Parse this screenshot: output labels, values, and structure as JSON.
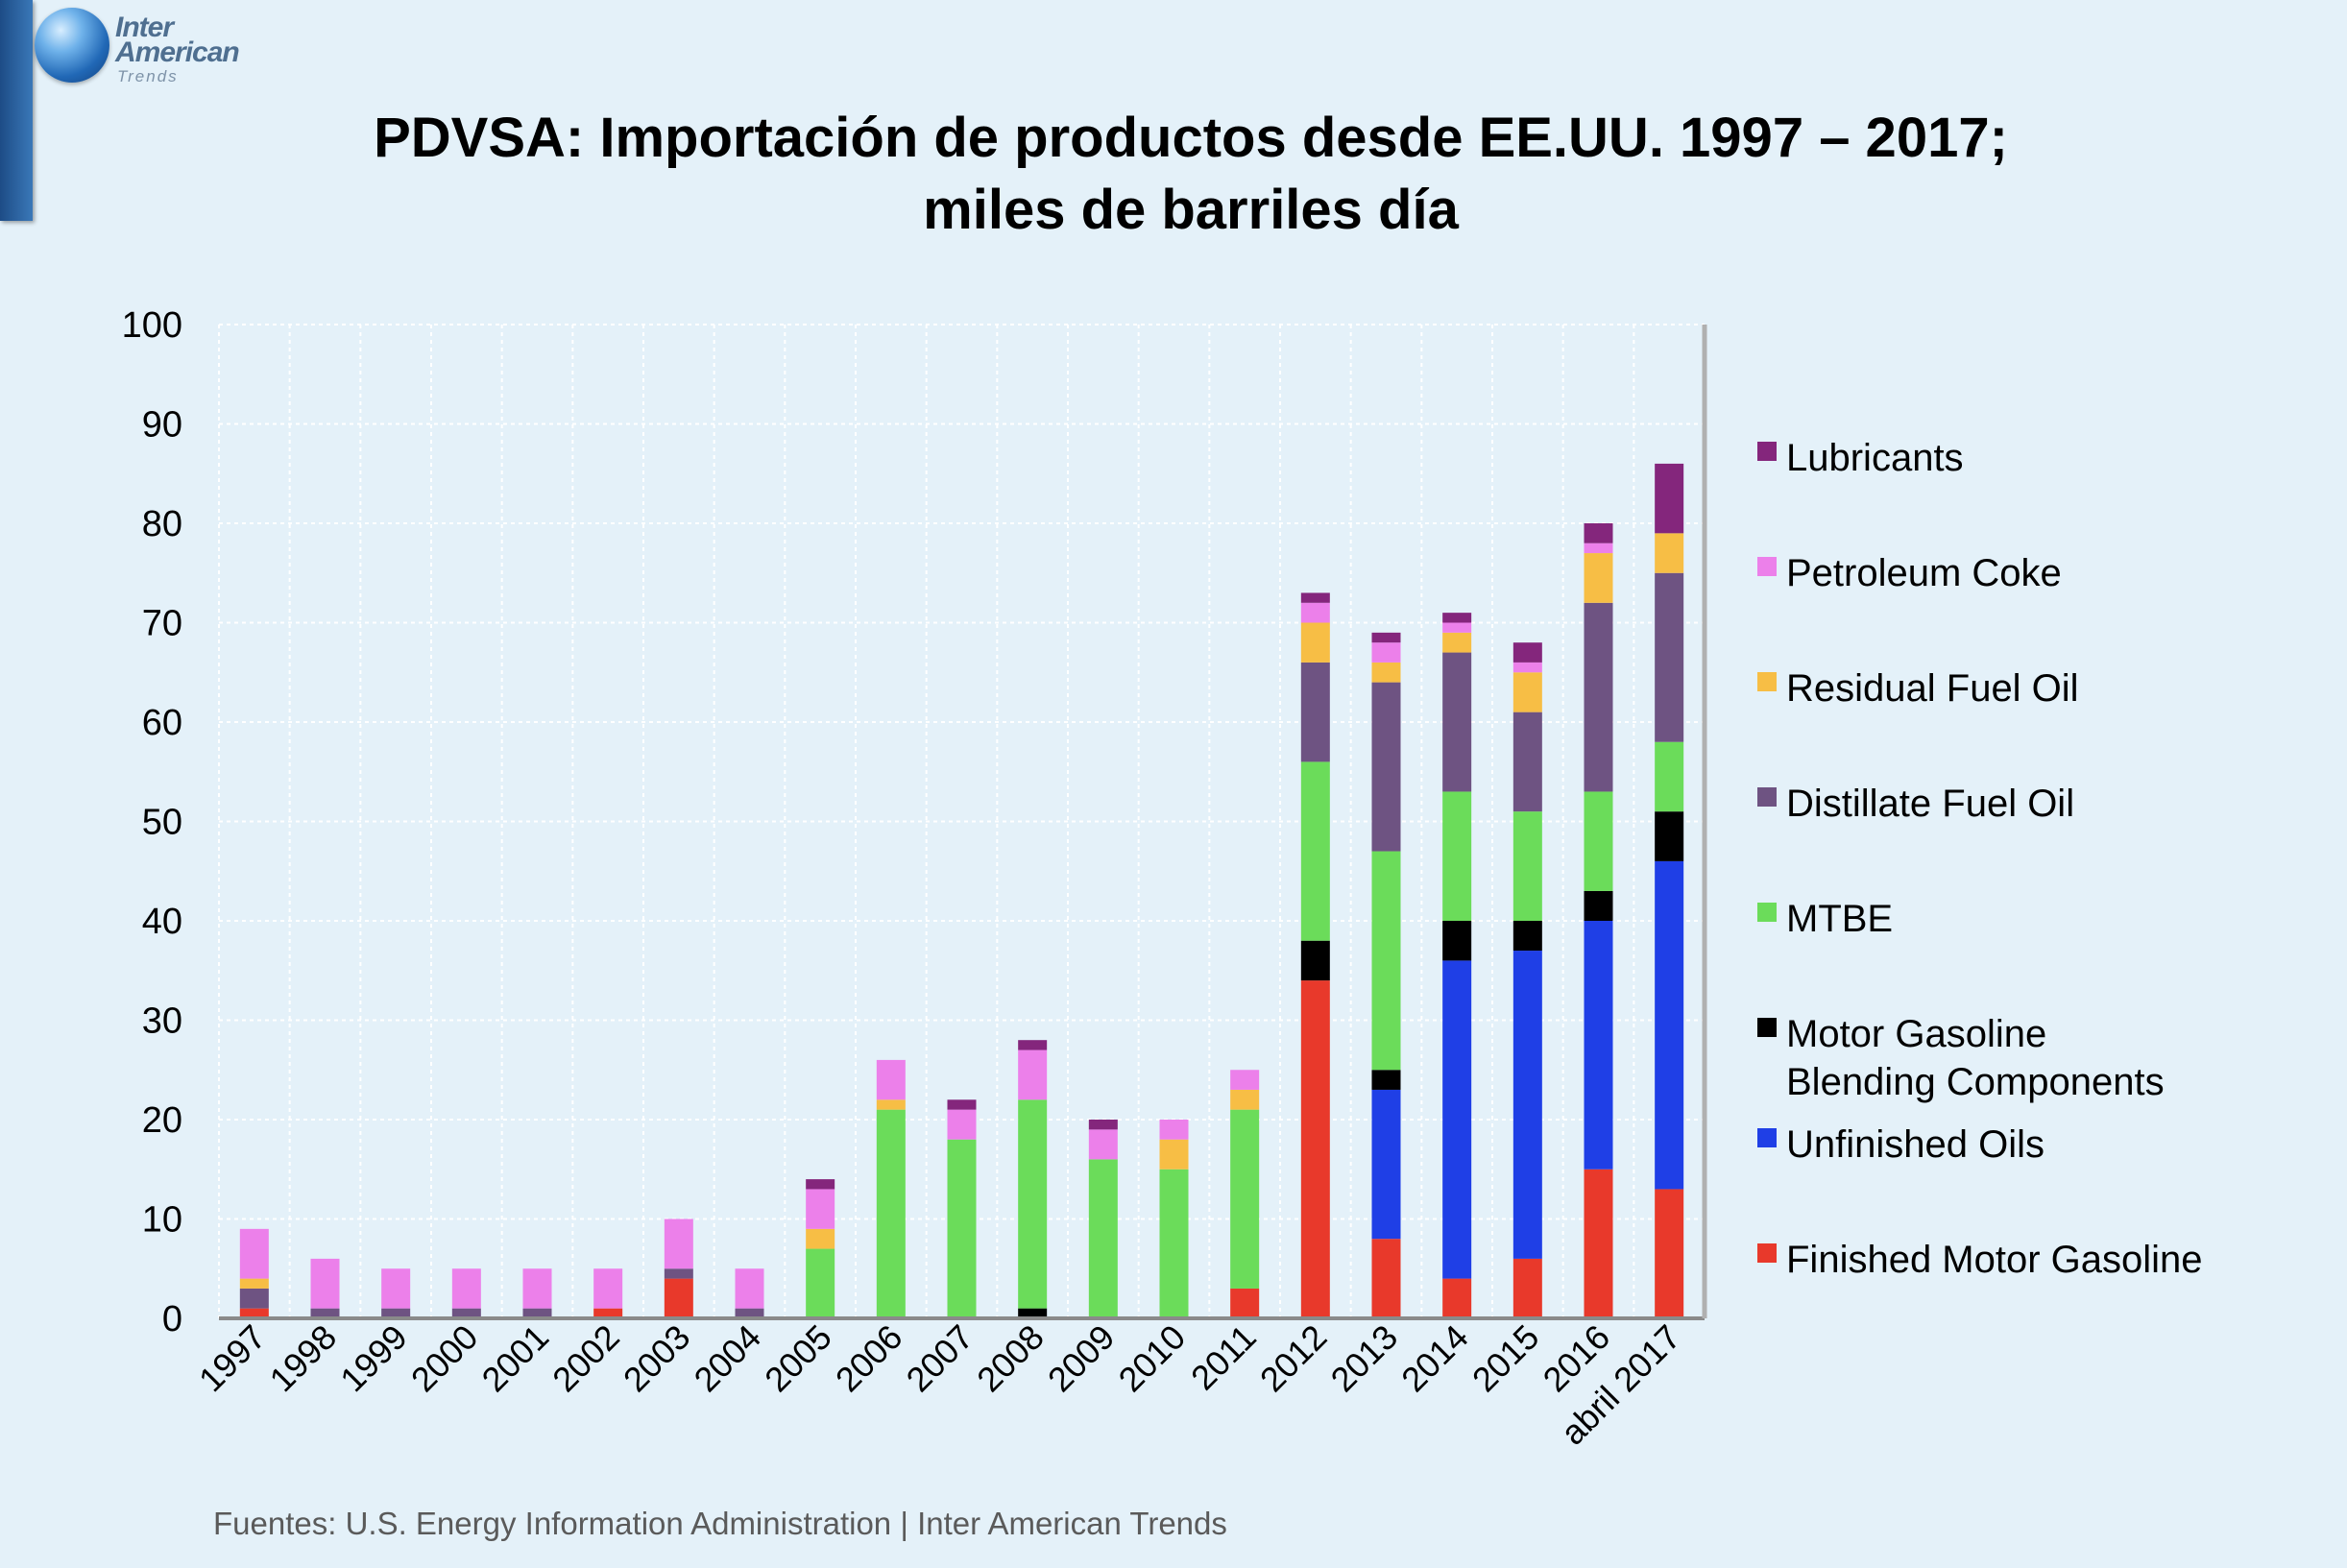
{
  "logo": {
    "line1": "Inter",
    "line2": "American",
    "line3": "Trends"
  },
  "title_line1": "PDVSA: Importación de productos desde EE.UU. 1997 – 2017;",
  "title_line2": "miles de barriles día",
  "source": "Fuentes: U.S. Energy Information Administration | Inter American Trends",
  "chart_data": {
    "type": "bar",
    "stacked": true,
    "categories": [
      "1997",
      "1998",
      "1999",
      "2000",
      "2001",
      "2002",
      "2003",
      "2004",
      "2005",
      "2006",
      "2007",
      "2008",
      "2009",
      "2010",
      "2011",
      "2012",
      "2013",
      "2014",
      "2015",
      "2016",
      "abril 2017"
    ],
    "ylim": [
      0,
      100
    ],
    "yticks": [
      0,
      10,
      20,
      30,
      40,
      50,
      60,
      70,
      80,
      90,
      100
    ],
    "grid": true,
    "legend_position": "right",
    "series": [
      {
        "name": "Finished Motor Gasoline",
        "color": "#e8392b",
        "values": [
          1,
          0,
          0,
          0,
          0,
          1,
          4,
          0,
          0,
          0,
          0,
          0,
          0,
          0,
          3,
          34,
          8,
          4,
          6,
          15,
          13
        ]
      },
      {
        "name": "Unfinished Oils",
        "color": "#1f3fe6",
        "values": [
          0,
          0,
          0,
          0,
          0,
          0,
          0,
          0,
          0,
          0,
          0,
          0,
          0,
          0,
          0,
          0,
          15,
          32,
          31,
          25,
          33
        ]
      },
      {
        "name": "Motor Gasoline Blending Components",
        "color": "#000000",
        "values": [
          0,
          0,
          0,
          0,
          0,
          0,
          0,
          0,
          0,
          0,
          0,
          1,
          0,
          0,
          0,
          4,
          2,
          4,
          3,
          3,
          5
        ]
      },
      {
        "name": "MTBE",
        "color": "#6bdc5a",
        "values": [
          0,
          0,
          0,
          0,
          0,
          0,
          0,
          0,
          7,
          21,
          18,
          21,
          16,
          15,
          18,
          18,
          22,
          13,
          11,
          10,
          7
        ]
      },
      {
        "name": "Distillate Fuel Oil",
        "color": "#6e5382",
        "values": [
          2,
          1,
          1,
          1,
          1,
          0,
          1,
          1,
          0,
          0,
          0,
          0,
          0,
          0,
          0,
          10,
          17,
          14,
          10,
          19,
          17
        ]
      },
      {
        "name": "Residual Fuel Oil",
        "color": "#f7be45",
        "values": [
          1,
          0,
          0,
          0,
          0,
          0,
          0,
          0,
          2,
          1,
          0,
          0,
          0,
          3,
          2,
          4,
          2,
          2,
          4,
          5,
          4
        ]
      },
      {
        "name": "Petroleum Coke",
        "color": "#ec80ea",
        "values": [
          5,
          5,
          4,
          4,
          4,
          4,
          5,
          4,
          4,
          4,
          3,
          5,
          3,
          2,
          2,
          2,
          2,
          1,
          1,
          1,
          0
        ]
      },
      {
        "name": "Lubricants",
        "color": "#84267c",
        "values": [
          0,
          0,
          0,
          0,
          0,
          0,
          0,
          0,
          1,
          0,
          1,
          1,
          1,
          0,
          0,
          1,
          1,
          1,
          2,
          2,
          7
        ]
      }
    ],
    "legend": [
      {
        "label": "Lubricants",
        "color": "#84267c"
      },
      {
        "label": "Petroleum Coke",
        "color": "#ec80ea"
      },
      {
        "label": "Residual Fuel Oil",
        "color": "#f7be45"
      },
      {
        "label": "Distillate Fuel Oil",
        "color": "#6e5382"
      },
      {
        "label": "MTBE",
        "color": "#6bdc5a"
      },
      {
        "label": "Motor Gasoline",
        "label_line2": "Blending Components",
        "color": "#000000"
      },
      {
        "label": "Unfinished Oils",
        "color": "#1f3fe6"
      },
      {
        "label": "Finished Motor Gasoline",
        "color": "#e8392b"
      }
    ]
  }
}
